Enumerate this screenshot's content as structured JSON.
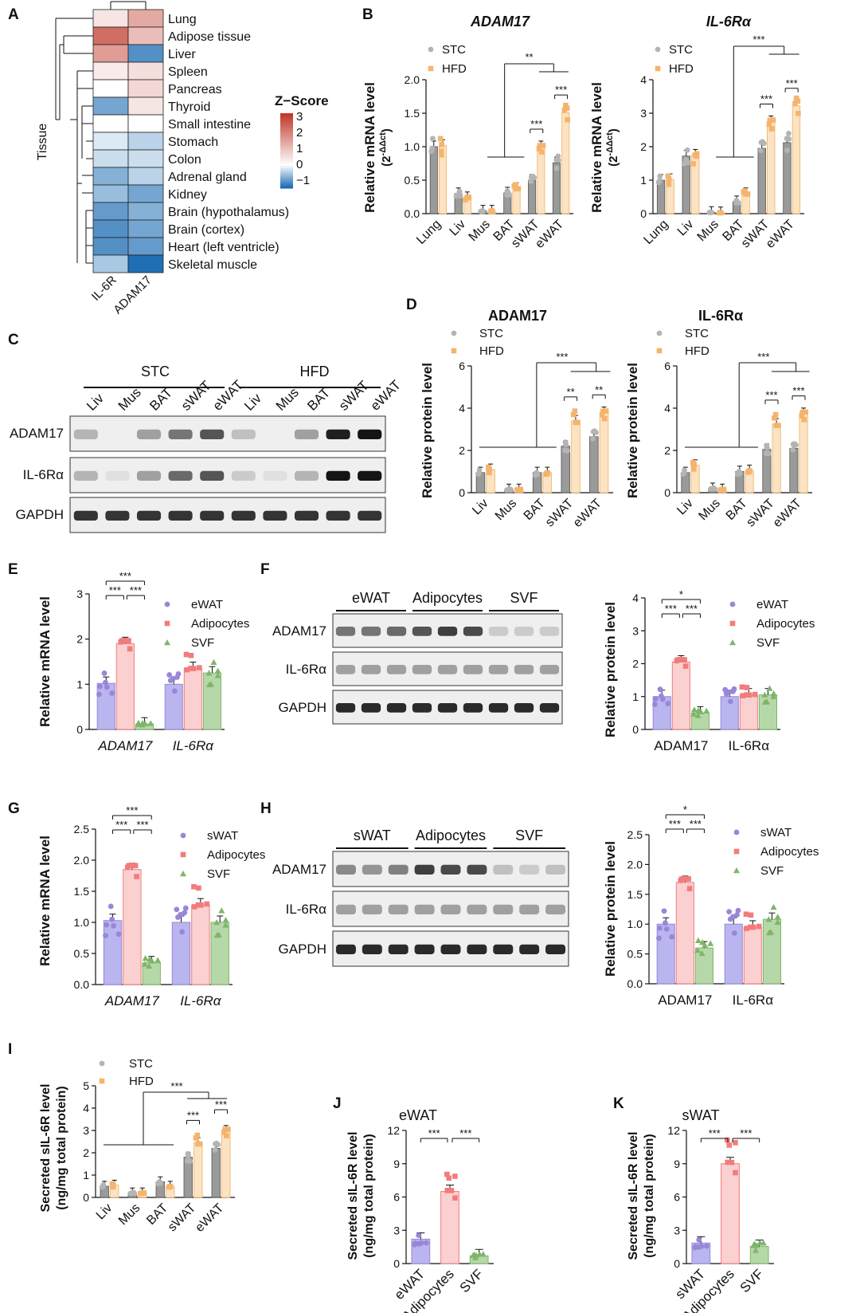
{
  "colors": {
    "stc": "#9a9a9a",
    "stc_dot": "#b4b4b4",
    "hfd": "#fbe3c4",
    "hfd_edge": "#f1b25a",
    "hfd_dot": "#f5b46e",
    "watE": "#b9b5ef",
    "watE_dot": "#9a86d9",
    "adipo": "#fbd0d0",
    "adipo_dot": "#f27c7c",
    "svf": "#b6d8a8",
    "svf_dot": "#7fb56b",
    "heat_hi": "#c0392b",
    "heat_mid": "#ffffff",
    "heat_lo": "#1f6fb5"
  },
  "panelA": {
    "letter": "A",
    "ylabel": "Tissue",
    "tissues": [
      "Lung",
      "Adipose tissue",
      "Liver",
      "Spleen",
      "Pancreas",
      "Thyroid",
      "Small intestine",
      "Stomach",
      "Colon",
      "Adrenal gland",
      "Kidney",
      "Brain (hypothalamus)",
      "Brain (cortex)",
      "Heart (left ventricle)",
      "Skeletal muscle"
    ],
    "columns": [
      "IL-6R",
      "ADAM17"
    ],
    "zscores": [
      [
        0.4,
        1.3
      ],
      [
        2.2,
        1.0
      ],
      [
        1.5,
        -1.0
      ],
      [
        0.3,
        0.5
      ],
      [
        0.0,
        0.6
      ],
      [
        -0.8,
        0.4
      ],
      [
        0.0,
        0.0
      ],
      [
        -0.2,
        -0.4
      ],
      [
        -0.3,
        -0.3
      ],
      [
        -0.7,
        -0.4
      ],
      [
        -0.6,
        -0.8
      ],
      [
        -0.9,
        -0.7
      ],
      [
        -1.0,
        -0.8
      ],
      [
        -1.0,
        -0.9
      ],
      [
        -0.5,
        -1.3
      ]
    ],
    "legend_title": "Z−Score",
    "legend_ticks": [
      "3",
      "2",
      "1",
      "0",
      "−1"
    ]
  },
  "panelB": {
    "letter": "B",
    "ylabel": "Relative mRNA level",
    "ylabel2": "(2",
    "ylabel_sup": "-ΔΔct",
    "ylabel_end": ")",
    "legend": [
      "STC",
      "HFD"
    ],
    "categories": [
      "Lung",
      "Liv",
      "Mus",
      "BAT",
      "sWAT",
      "eWAT"
    ],
    "charts": [
      {
        "title": "ADAM17",
        "yticks": [
          "0.0",
          "0.5",
          "1.0",
          "1.5",
          "2.0"
        ],
        "ymax": 2.0,
        "stc": [
          1.0,
          0.3,
          0.04,
          0.31,
          0.5,
          0.76
        ],
        "hfd": [
          1.02,
          0.24,
          0.04,
          0.38,
          1.0,
          1.51
        ],
        "sig": [
          "**",
          "***",
          "***"
        ]
      },
      {
        "title": "IL-6Rα",
        "yticks": [
          "0",
          "1",
          "2",
          "3",
          "4"
        ],
        "ymax": 4,
        "stc": [
          1.0,
          1.72,
          0.04,
          0.36,
          1.95,
          2.12
        ],
        "hfd": [
          1.02,
          1.75,
          0.03,
          0.6,
          2.75,
          3.22
        ],
        "sig": [
          "***",
          "***",
          "***"
        ]
      }
    ]
  },
  "panelC": {
    "letter": "C",
    "groups": [
      "STC",
      "HFD"
    ],
    "lanes": [
      "Liv",
      "Mus",
      "BAT",
      "sWAT",
      "eWAT",
      "Liv",
      "Mus",
      "BAT",
      "sWAT",
      "eWAT"
    ],
    "rows": [
      "ADAM17",
      "IL-6Rα",
      "GAPDH"
    ]
  },
  "panelD": {
    "letter": "D",
    "ylabel": "Relative protein level",
    "legend": [
      "STC",
      "HFD"
    ],
    "categories": [
      "Liv",
      "Mus",
      "BAT",
      "sWAT",
      "eWAT"
    ],
    "charts": [
      {
        "title": "ADAM17",
        "yticks": [
          "0",
          "2",
          "4",
          "6"
        ],
        "ymax": 6,
        "stc": [
          0.95,
          0.15,
          0.95,
          2.2,
          2.65
        ],
        "hfd": [
          1.1,
          0.15,
          0.95,
          3.4,
          3.8
        ],
        "sig": [
          "***",
          "**",
          "**"
        ]
      },
      {
        "title": "IL-6Rα",
        "yticks": [
          "0",
          "2",
          "4",
          "6"
        ],
        "ymax": 6,
        "stc": [
          0.95,
          0.2,
          1.0,
          2.05,
          2.1
        ],
        "hfd": [
          1.3,
          0.15,
          1.05,
          3.25,
          3.75
        ],
        "sig": [
          "***",
          "***",
          "***"
        ]
      }
    ]
  },
  "panelE": {
    "letter": "E",
    "ylabel": "Relative mRNA level",
    "legend": [
      "eWAT",
      "Adipocytes",
      "SVF"
    ],
    "groups": [
      "ADAM17",
      "IL-6Rα"
    ],
    "yticks": [
      "0",
      "1",
      "2",
      "3"
    ],
    "ymax": 3,
    "values": [
      [
        1.02,
        1.9,
        0.12
      ],
      [
        1.0,
        1.35,
        1.25
      ]
    ],
    "sig": [
      "***",
      "***",
      "***"
    ]
  },
  "panelF": {
    "letter": "F",
    "blot_groups": [
      "eWAT",
      "Adipocytes",
      "SVF"
    ],
    "rows": [
      "ADAM17",
      "IL-6Rα",
      "GAPDH"
    ],
    "ylabel": "Relative protein level",
    "legend": [
      "eWAT",
      "Adipocytes",
      "SVF"
    ],
    "groups": [
      "ADAM17",
      "IL-6Rα"
    ],
    "yticks": [
      "0",
      "1",
      "2",
      "3",
      "4"
    ],
    "ymax": 4,
    "values": [
      [
        1.0,
        2.05,
        0.5
      ],
      [
        1.0,
        1.05,
        1.05
      ]
    ],
    "sig": [
      "*",
      "***",
      "***"
    ]
  },
  "panelG": {
    "letter": "G",
    "ylabel": "Relative mRNA level",
    "legend": [
      "sWAT",
      "Adipocytes",
      "SVF"
    ],
    "groups": [
      "ADAM17",
      "IL-6Rα"
    ],
    "yticks": [
      "0.0",
      "0.5",
      "1.0",
      "1.5",
      "2.0",
      "2.5"
    ],
    "ymax": 2.5,
    "values": [
      [
        1.03,
        1.85,
        0.35
      ],
      [
        1.0,
        1.28,
        1.0
      ]
    ],
    "sig": [
      "***",
      "***",
      "***"
    ]
  },
  "panelH": {
    "letter": "H",
    "blot_groups": [
      "sWAT",
      "Adipocytes",
      "SVF"
    ],
    "rows": [
      "ADAM17",
      "IL-6Rα",
      "GAPDH"
    ],
    "ylabel": "Relative protein level",
    "legend": [
      "sWAT",
      "Adipocytes",
      "SVF"
    ],
    "groups": [
      "ADAM17",
      "IL-6Rα"
    ],
    "yticks": [
      "0.0",
      "0.5",
      "1.0",
      "1.5",
      "2.0",
      "2.5"
    ],
    "ymax": 2.5,
    "values": [
      [
        1.0,
        1.7,
        0.6
      ],
      [
        1.0,
        0.95,
        1.08
      ]
    ],
    "sig": [
      "*",
      "***",
      "***"
    ]
  },
  "panelI": {
    "letter": "I",
    "ylabel": "Secreted sIL-6R level",
    "ylabel2": "(ng/mg total protein)",
    "legend": [
      "STC",
      "HFD"
    ],
    "categories": [
      "Liv",
      "Mus",
      "BAT",
      "sWAT",
      "eWAT"
    ],
    "yticks": [
      "0",
      "1",
      "2",
      "3",
      "4",
      "5"
    ],
    "ymax": 5,
    "stc": [
      0.5,
      0.2,
      0.7,
      1.8,
      2.2
    ],
    "hfd": [
      0.55,
      0.2,
      0.5,
      2.45,
      3.0
    ],
    "sig": [
      "***",
      "***",
      "***"
    ]
  },
  "panelJ": {
    "letter": "J",
    "title": "eWAT",
    "ylabel": "Secreted sIL-6R level",
    "ylabel2": "(ng/mg total protein)",
    "categories": [
      "eWAT",
      "Adipocytes",
      "SVF"
    ],
    "yticks": [
      "0",
      "3",
      "6",
      "9",
      "12"
    ],
    "ymax": 12,
    "values": [
      2.2,
      6.5,
      0.7
    ],
    "sig": [
      "***",
      "***"
    ]
  },
  "panelK": {
    "letter": "K",
    "title": "sWAT",
    "ylabel": "Secreted sIL-6R level",
    "ylabel2": "(ng/mg total protein)",
    "categories": [
      "sWAT",
      "Adipocytes",
      "SVF"
    ],
    "yticks": [
      "0",
      "3",
      "6",
      "9",
      "12"
    ],
    "ymax": 12,
    "values": [
      1.85,
      9.0,
      1.55
    ],
    "sig": [
      "***",
      "***"
    ]
  }
}
